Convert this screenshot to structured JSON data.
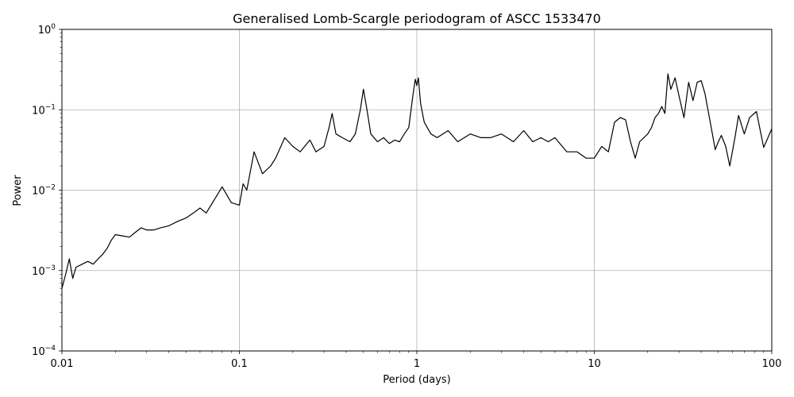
{
  "chart_data": {
    "type": "line",
    "title": "Generalised Lomb-Scargle periodogram of ASCC 1533470",
    "xlabel": "Period (days)",
    "ylabel": "Power",
    "xscale": "log",
    "yscale": "log",
    "xlim": [
      0.01,
      100
    ],
    "ylim": [
      0.0001,
      1
    ],
    "grid": true,
    "x_ticks": [
      {
        "value": 0.01,
        "label": "0.01"
      },
      {
        "value": 0.1,
        "label": "0.1"
      },
      {
        "value": 1,
        "label": "1"
      },
      {
        "value": 10,
        "label": "10"
      },
      {
        "value": 100,
        "label": "100"
      }
    ],
    "y_ticks": [
      {
        "value": 0.0001,
        "base": "10",
        "exp": "−4"
      },
      {
        "value": 0.001,
        "base": "10",
        "exp": "−3"
      },
      {
        "value": 0.01,
        "base": "10",
        "exp": "−2"
      },
      {
        "value": 0.1,
        "base": "10",
        "exp": "−1"
      },
      {
        "value": 1,
        "base": "10",
        "exp": "0"
      }
    ],
    "line_color": "#000000",
    "series": [
      {
        "points": [
          [
            0.01,
            0.0006
          ],
          [
            0.0105,
            0.0009
          ],
          [
            0.011,
            0.0014
          ],
          [
            0.0115,
            0.0008
          ],
          [
            0.012,
            0.0011
          ],
          [
            0.013,
            0.0012
          ],
          [
            0.014,
            0.0013
          ],
          [
            0.015,
            0.0012
          ],
          [
            0.016,
            0.0014
          ],
          [
            0.017,
            0.0016
          ],
          [
            0.018,
            0.0019
          ],
          [
            0.019,
            0.0024
          ],
          [
            0.02,
            0.0028
          ],
          [
            0.022,
            0.0027
          ],
          [
            0.024,
            0.0026
          ],
          [
            0.026,
            0.003
          ],
          [
            0.028,
            0.0034
          ],
          [
            0.03,
            0.0032
          ],
          [
            0.033,
            0.0032
          ],
          [
            0.036,
            0.0034
          ],
          [
            0.04,
            0.0036
          ],
          [
            0.045,
            0.0041
          ],
          [
            0.05,
            0.0045
          ],
          [
            0.055,
            0.0052
          ],
          [
            0.06,
            0.006
          ],
          [
            0.065,
            0.0052
          ],
          [
            0.07,
            0.0068
          ],
          [
            0.08,
            0.011
          ],
          [
            0.09,
            0.007
          ],
          [
            0.1,
            0.0065
          ],
          [
            0.105,
            0.012
          ],
          [
            0.11,
            0.01
          ],
          [
            0.121,
            0.03
          ],
          [
            0.135,
            0.016
          ],
          [
            0.15,
            0.02
          ],
          [
            0.16,
            0.025
          ],
          [
            0.18,
            0.045
          ],
          [
            0.2,
            0.035
          ],
          [
            0.22,
            0.03
          ],
          [
            0.25,
            0.042
          ],
          [
            0.27,
            0.03
          ],
          [
            0.3,
            0.035
          ],
          [
            0.32,
            0.06
          ],
          [
            0.333,
            0.09
          ],
          [
            0.35,
            0.05
          ],
          [
            0.38,
            0.045
          ],
          [
            0.42,
            0.04
          ],
          [
            0.45,
            0.05
          ],
          [
            0.48,
            0.1
          ],
          [
            0.5,
            0.18
          ],
          [
            0.52,
            0.11
          ],
          [
            0.55,
            0.05
          ],
          [
            0.6,
            0.04
          ],
          [
            0.65,
            0.045
          ],
          [
            0.7,
            0.038
          ],
          [
            0.75,
            0.042
          ],
          [
            0.8,
            0.04
          ],
          [
            0.85,
            0.05
          ],
          [
            0.9,
            0.06
          ],
          [
            0.95,
            0.15
          ],
          [
            0.98,
            0.24
          ],
          [
            1.0,
            0.2
          ],
          [
            1.02,
            0.25
          ],
          [
            1.05,
            0.12
          ],
          [
            1.1,
            0.07
          ],
          [
            1.2,
            0.05
          ],
          [
            1.3,
            0.045
          ],
          [
            1.5,
            0.055
          ],
          [
            1.7,
            0.04
          ],
          [
            2.0,
            0.05
          ],
          [
            2.3,
            0.045
          ],
          [
            2.6,
            0.045
          ],
          [
            3.0,
            0.05
          ],
          [
            3.5,
            0.04
          ],
          [
            4.0,
            0.055
          ],
          [
            4.5,
            0.04
          ],
          [
            5.0,
            0.045
          ],
          [
            5.5,
            0.04
          ],
          [
            6.0,
            0.045
          ],
          [
            7.0,
            0.03
          ],
          [
            8.0,
            0.03
          ],
          [
            9.0,
            0.025
          ],
          [
            10.0,
            0.025
          ],
          [
            11.0,
            0.035
          ],
          [
            12.0,
            0.03
          ],
          [
            13.0,
            0.07
          ],
          [
            14.0,
            0.08
          ],
          [
            15.0,
            0.075
          ],
          [
            16.0,
            0.04
          ],
          [
            17.0,
            0.025
          ],
          [
            18.0,
            0.04
          ],
          [
            20.0,
            0.05
          ],
          [
            21.0,
            0.06
          ],
          [
            22.0,
            0.08
          ],
          [
            23.0,
            0.09
          ],
          [
            24.0,
            0.11
          ],
          [
            25.0,
            0.09
          ],
          [
            26.0,
            0.28
          ],
          [
            27.0,
            0.18
          ],
          [
            28.5,
            0.25
          ],
          [
            30.0,
            0.15
          ],
          [
            32.0,
            0.08
          ],
          [
            34.0,
            0.22
          ],
          [
            36.0,
            0.13
          ],
          [
            38.0,
            0.22
          ],
          [
            40.0,
            0.23
          ],
          [
            42.0,
            0.16
          ],
          [
            45.0,
            0.07
          ],
          [
            48.0,
            0.032
          ],
          [
            50.0,
            0.04
          ],
          [
            52.0,
            0.048
          ],
          [
            55.0,
            0.035
          ],
          [
            58.0,
            0.02
          ],
          [
            62.0,
            0.045
          ],
          [
            65.0,
            0.085
          ],
          [
            70.0,
            0.05
          ],
          [
            75.0,
            0.08
          ],
          [
            82.0,
            0.095
          ],
          [
            90.0,
            0.034
          ],
          [
            100.0,
            0.058
          ]
        ]
      }
    ]
  }
}
